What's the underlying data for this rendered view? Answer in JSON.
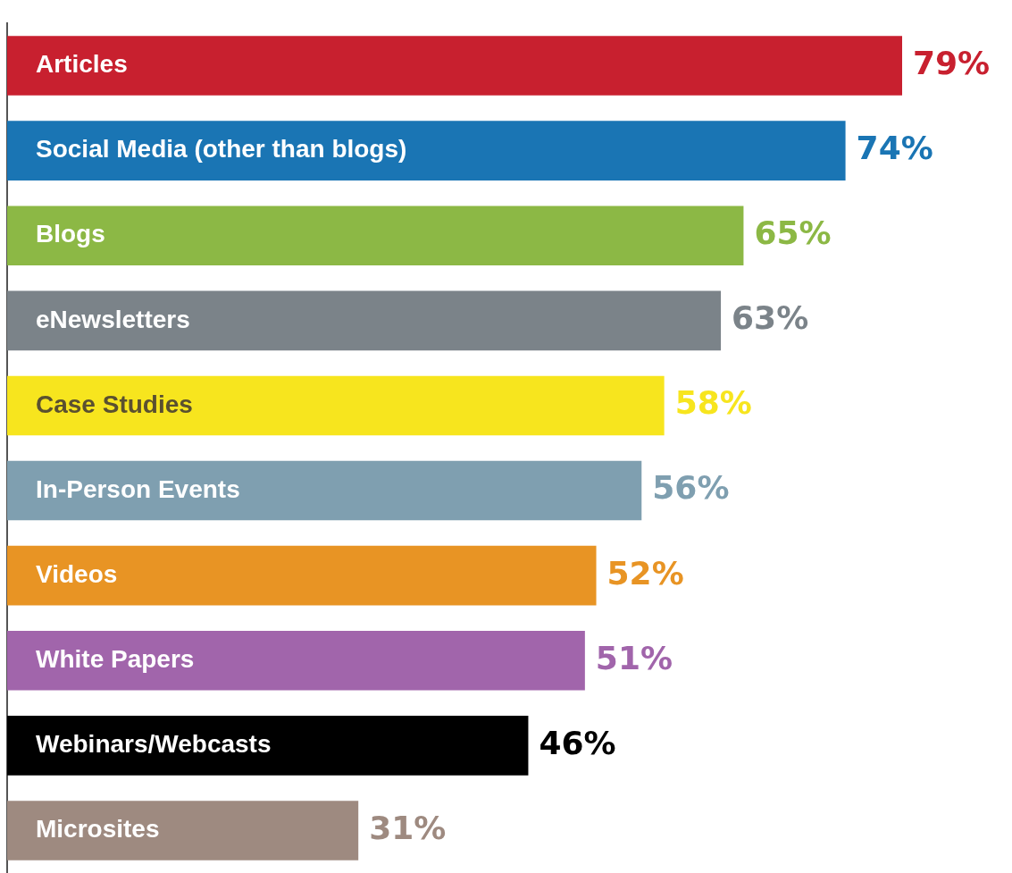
{
  "chart_data": {
    "type": "bar",
    "orientation": "horizontal",
    "categories": [
      "Articles",
      "Social Media (other than blogs)",
      "Blogs",
      "eNewsletters",
      "Case Studies",
      "In-Person Events",
      "Videos",
      "White Papers",
      "Webinars/Webcasts",
      "Microsites"
    ],
    "values": [
      79,
      74,
      65,
      63,
      58,
      56,
      52,
      51,
      46,
      31
    ],
    "value_labels": [
      "79%",
      "74%",
      "65%",
      "63%",
      "58%",
      "56%",
      "52%",
      "51%",
      "46%",
      "31%"
    ],
    "colors": [
      "#c8202f",
      "#1a75b4",
      "#8cb845",
      "#7b8389",
      "#f7e51e",
      "#7f9fb0",
      "#e89424",
      "#a165ab",
      "#000000",
      "#9e8a80"
    ],
    "grid": false,
    "legend": false
  }
}
